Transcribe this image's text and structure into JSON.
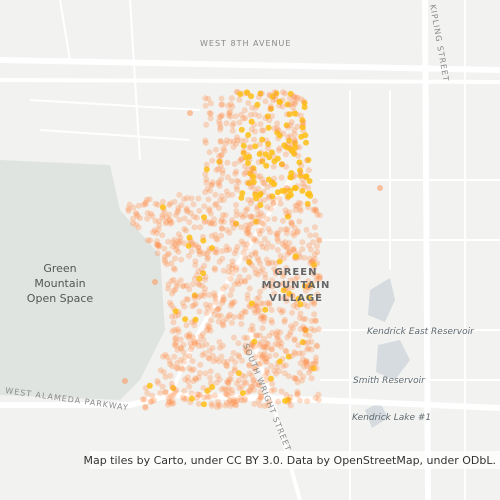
{
  "map": {
    "roads": {
      "west_8th": "WEST 8TH AVENUE",
      "kipling": "KIPLING STREET",
      "alameda": "WEST ALAMEDA PARKWAY",
      "wright": "SOUTH WRIGHT STREET"
    },
    "places": {
      "open_space": [
        "Green",
        "Mountain",
        "Open Space"
      ],
      "village": [
        "GREEN",
        "MOUNTAIN",
        "VILLAGE"
      ]
    },
    "water": {
      "kendrick_east": "Kendrick East Reservoir",
      "smith": "Smith Reservoir",
      "kendrick_lake": "Kendrick Lake #1"
    },
    "attribution": "Map tiles by Carto, under CC BY 3.0. Data by OpenStreetMap, under ODbL."
  }
}
